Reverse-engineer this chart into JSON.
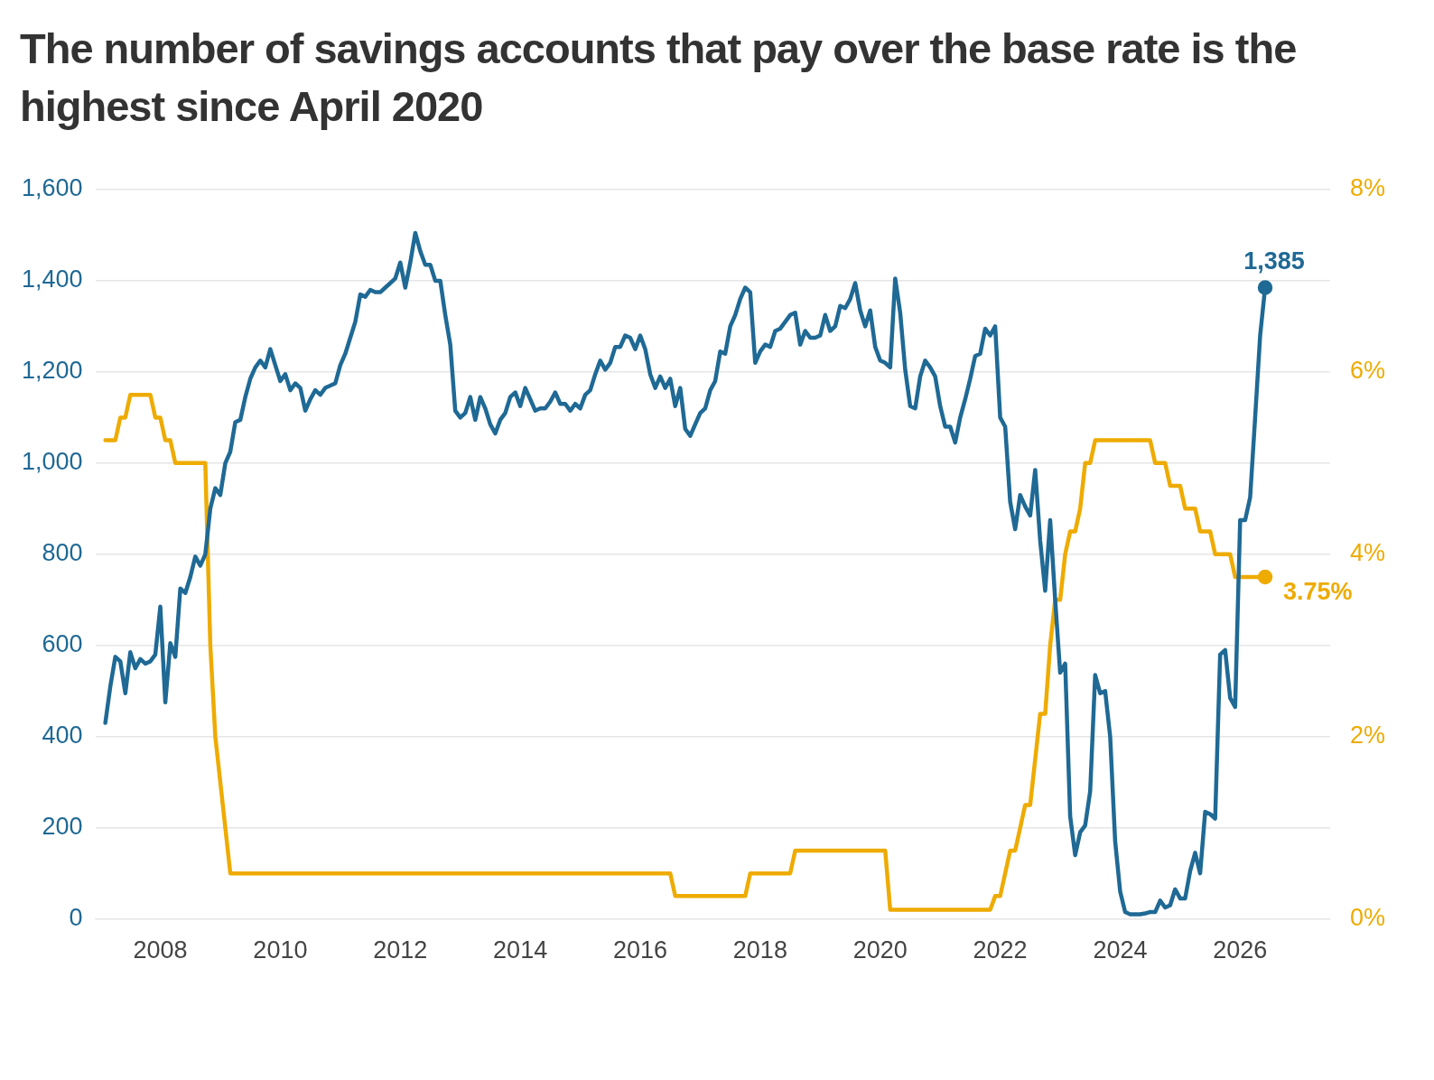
{
  "chart_data": {
    "type": "line",
    "title": "The number of savings accounts that pay over the base rate is the highest since April 2020",
    "xlim": [
      "2006-12",
      "2027-07"
    ],
    "xticks": [
      "2008",
      "2010",
      "2012",
      "2014",
      "2016",
      "2018",
      "2020",
      "2022",
      "2024",
      "2026"
    ],
    "ylim": [
      0,
      1600
    ],
    "yticks": [
      {
        "value": 0,
        "label": "0"
      },
      {
        "value": 200,
        "label": "200"
      },
      {
        "value": 400,
        "label": "400"
      },
      {
        "value": 600,
        "label": "600"
      },
      {
        "value": 800,
        "label": "800"
      },
      {
        "value": 1000,
        "label": "1,000"
      },
      {
        "value": 1200,
        "label": "1,200"
      },
      {
        "value": 1400,
        "label": "1,400"
      },
      {
        "value": 1600,
        "label": "1,600"
      }
    ],
    "y2lim": [
      0,
      8
    ],
    "y2ticks": [
      {
        "value": 0,
        "label": "0%"
      },
      {
        "value": 2,
        "label": "2%"
      },
      {
        "value": 4,
        "label": "4%"
      },
      {
        "value": 6,
        "label": "6%"
      },
      {
        "value": 8,
        "label": "8%"
      }
    ],
    "grid": "y",
    "legend": false,
    "series": [
      {
        "color": "#1f6995",
        "x": [
          "2007-02",
          "2007-03",
          "2007-04",
          "2007-05",
          "2007-06",
          "2007-07",
          "2007-08",
          "2007-09",
          "2007-10",
          "2007-11",
          "2007-12",
          "2008-01",
          "2008-02",
          "2008-03",
          "2008-04",
          "2008-05",
          "2008-06",
          "2008-07",
          "2008-08",
          "2008-09",
          "2008-10",
          "2008-11",
          "2008-12",
          "2009-01",
          "2009-02",
          "2009-03",
          "2009-04",
          "2009-05",
          "2009-06",
          "2009-07",
          "2009-08",
          "2009-09",
          "2009-10",
          "2009-11",
          "2009-12",
          "2010-01",
          "2010-02",
          "2010-03",
          "2010-04",
          "2010-05",
          "2010-06",
          "2010-07",
          "2010-08",
          "2010-09",
          "2010-10",
          "2010-11",
          "2010-12",
          "2011-01",
          "2011-02",
          "2011-03",
          "2011-04",
          "2011-05",
          "2011-06",
          "2011-07",
          "2011-08",
          "2011-09",
          "2011-10",
          "2011-11",
          "2011-12",
          "2012-01",
          "2012-02",
          "2012-03",
          "2012-04",
          "2012-05",
          "2012-06",
          "2012-07",
          "2012-08",
          "2012-09",
          "2012-10",
          "2012-11",
          "2012-12",
          "2013-01",
          "2013-02",
          "2013-03",
          "2013-04",
          "2013-05",
          "2013-06",
          "2013-07",
          "2013-08",
          "2013-09",
          "2013-10",
          "2013-11",
          "2013-12",
          "2014-01",
          "2014-02",
          "2014-03",
          "2014-04",
          "2014-05",
          "2014-06",
          "2014-07",
          "2014-08",
          "2014-09",
          "2014-10",
          "2014-11",
          "2014-12",
          "2015-01",
          "2015-02",
          "2015-03",
          "2015-04",
          "2015-05",
          "2015-06",
          "2015-07",
          "2015-08",
          "2015-09",
          "2015-10",
          "2015-11",
          "2015-12",
          "2016-01",
          "2016-02",
          "2016-03",
          "2016-04",
          "2016-05",
          "2016-06",
          "2016-07",
          "2016-08",
          "2016-09",
          "2016-10",
          "2016-11",
          "2016-12",
          "2017-01",
          "2017-02",
          "2017-03",
          "2017-04",
          "2017-05",
          "2017-06",
          "2017-07",
          "2017-08",
          "2017-09",
          "2017-10",
          "2017-11",
          "2017-12",
          "2018-01",
          "2018-02",
          "2018-03",
          "2018-04",
          "2018-05",
          "2018-06",
          "2018-07",
          "2018-08",
          "2018-09",
          "2018-10",
          "2018-11",
          "2018-12",
          "2019-01",
          "2019-02",
          "2019-03",
          "2019-04",
          "2019-05",
          "2019-06",
          "2019-07",
          "2019-08",
          "2019-09",
          "2019-10",
          "2019-11",
          "2019-12",
          "2020-01",
          "2020-02",
          "2020-03",
          "2020-04",
          "2020-05",
          "2020-06",
          "2020-07",
          "2020-08",
          "2020-09",
          "2020-10",
          "2020-11",
          "2020-12",
          "2021-01",
          "2021-02",
          "2021-03",
          "2021-04",
          "2021-05",
          "2021-06",
          "2021-07",
          "2021-08",
          "2021-09",
          "2021-10",
          "2021-11",
          "2021-12",
          "2022-01",
          "2022-02",
          "2022-03",
          "2022-04",
          "2022-05",
          "2022-06",
          "2022-07",
          "2022-08",
          "2022-09",
          "2022-10",
          "2022-11",
          "2022-12",
          "2023-01",
          "2023-02",
          "2023-03",
          "2023-04",
          "2023-05",
          "2023-06",
          "2023-07",
          "2023-08",
          "2023-09",
          "2023-10",
          "2023-11",
          "2023-12",
          "2024-01",
          "2024-02",
          "2024-03",
          "2024-04",
          "2024-05",
          "2024-06",
          "2024-07",
          "2024-08",
          "2024-09",
          "2024-10",
          "2024-11",
          "2024-12",
          "2025-01",
          "2025-02",
          "2025-03",
          "2025-04",
          "2025-05",
          "2025-06",
          "2025-07",
          "2025-08",
          "2025-09",
          "2025-10",
          "2025-11",
          "2025-12",
          "2026-01",
          "2026-02",
          "2026-03",
          "2026-04",
          "2026-05",
          "2026-06"
        ],
        "values": [
          430,
          510,
          575,
          565,
          495,
          585,
          550,
          570,
          560,
          565,
          580,
          685,
          475,
          605,
          575,
          725,
          715,
          750,
          795,
          775,
          800,
          900,
          945,
          930,
          1000,
          1025,
          1090,
          1095,
          1145,
          1185,
          1210,
          1225,
          1210,
          1250,
          1215,
          1180,
          1195,
          1160,
          1175,
          1165,
          1115,
          1140,
          1160,
          1150,
          1165,
          1170,
          1175,
          1215,
          1240,
          1275,
          1310,
          1370,
          1365,
          1380,
          1375,
          1375,
          1385,
          1395,
          1405,
          1440,
          1385,
          1440,
          1505,
          1465,
          1435,
          1435,
          1400,
          1400,
          1325,
          1260,
          1115,
          1100,
          1110,
          1145,
          1095,
          1145,
          1120,
          1085,
          1065,
          1095,
          1110,
          1145,
          1155,
          1125,
          1165,
          1140,
          1115,
          1120,
          1120,
          1135,
          1155,
          1130,
          1130,
          1115,
          1130,
          1120,
          1150,
          1160,
          1195,
          1225,
          1205,
          1220,
          1255,
          1255,
          1280,
          1275,
          1250,
          1280,
          1250,
          1195,
          1165,
          1190,
          1165,
          1185,
          1125,
          1165,
          1075,
          1060,
          1085,
          1110,
          1120,
          1160,
          1180,
          1245,
          1240,
          1300,
          1325,
          1360,
          1385,
          1375,
          1220,
          1245,
          1260,
          1255,
          1290,
          1295,
          1310,
          1325,
          1330,
          1260,
          1290,
          1275,
          1275,
          1280,
          1325,
          1290,
          1300,
          1345,
          1340,
          1360,
          1395,
          1335,
          1300,
          1335,
          1255,
          1225,
          1220,
          1210,
          1405,
          1330,
          1205,
          1125,
          1120,
          1190,
          1225,
          1210,
          1190,
          1125,
          1080,
          1080,
          1045,
          1100,
          1140,
          1185,
          1235,
          1240,
          1295,
          1280,
          1300,
          1100,
          1080,
          915,
          855,
          930,
          905,
          885,
          985,
          830,
          720,
          875,
          700,
          540,
          560,
          225,
          140,
          190,
          205,
          280,
          535,
          495,
          500,
          400,
          170,
          60,
          15,
          10,
          10,
          10,
          12,
          15,
          15,
          40,
          25,
          30,
          65,
          45,
          45,
          105,
          145,
          100,
          235,
          230,
          220,
          580,
          590,
          485,
          465,
          875,
          875,
          925,
          1100,
          1280,
          1385
        ],
        "value_labels": [
          null,
          null,
          null,
          null,
          null,
          null,
          null,
          null,
          null,
          null,
          null,
          null,
          null,
          null,
          null,
          null,
          null,
          null,
          null,
          null,
          null,
          null,
          null,
          null,
          null,
          null,
          null,
          null,
          null,
          null,
          null,
          null,
          null,
          null,
          null,
          null,
          null,
          null,
          null,
          null,
          null,
          null,
          null,
          null,
          null,
          null,
          null,
          null,
          null,
          null,
          null,
          null,
          null,
          null,
          null,
          null,
          null,
          null,
          null,
          null,
          null,
          null,
          null,
          null,
          null,
          null,
          null,
          null,
          null,
          null,
          null,
          null,
          null,
          null,
          null,
          null,
          null,
          null,
          null,
          null,
          null,
          null,
          null,
          null,
          null,
          null,
          null,
          null,
          null,
          null,
          null,
          null,
          null,
          null,
          null,
          null,
          null,
          null,
          null,
          null,
          null,
          null,
          null,
          null,
          null,
          null,
          null,
          null,
          null,
          null,
          null,
          null,
          null,
          null,
          null,
          null,
          null,
          null,
          null,
          null,
          null,
          null,
          null,
          null,
          null,
          null,
          null,
          null,
          null,
          null,
          null,
          null,
          null,
          null,
          null,
          null,
          null,
          null,
          null,
          null,
          null,
          null,
          null,
          null,
          null,
          null,
          null,
          null,
          null,
          null,
          null,
          null,
          null,
          null,
          null,
          null,
          null,
          null,
          null,
          null,
          null,
          null,
          null,
          null,
          null,
          null,
          null,
          null,
          null,
          null,
          null,
          null,
          null,
          null,
          null,
          null,
          null,
          null,
          null,
          null,
          null,
          null,
          null,
          null,
          null,
          null,
          null,
          null,
          null,
          null,
          null,
          null,
          null,
          null,
          null,
          null,
          null,
          null,
          null,
          null,
          null,
          null,
          null,
          null,
          null,
          null,
          null,
          null,
          null,
          null,
          null,
          null,
          null,
          null,
          null,
          null,
          null,
          null,
          null,
          null,
          null,
          null,
          null,
          null,
          null,
          null,
          null,
          null,
          null,
          null,
          null,
          null,
          "1,385"
        ]
      },
      {
        "color": "#eeab00",
        "axis": "y2",
        "x": [
          "2007-02",
          "2007-04",
          "2007-05",
          "2007-06",
          "2007-07",
          "2007-11",
          "2007-12",
          "2008-01",
          "2008-02",
          "2008-03",
          "2008-04",
          "2008-10",
          "2008-11",
          "2008-12",
          "2009-01",
          "2009-02",
          "2009-03",
          "2016-07",
          "2016-08",
          "2017-10",
          "2017-11",
          "2018-07",
          "2018-08",
          "2020-02",
          "2020-03",
          "2021-11",
          "2021-12",
          "2022-01",
          "2022-02",
          "2022-03",
          "2022-04",
          "2022-05",
          "2022-06",
          "2022-07",
          "2022-08",
          "2022-09",
          "2022-10",
          "2022-11",
          "2022-12",
          "2023-01",
          "2023-02",
          "2023-03",
          "2023-04",
          "2023-05",
          "2023-06",
          "2023-07",
          "2023-08",
          "2024-07",
          "2024-08",
          "2024-10",
          "2024-11",
          "2025-01",
          "2025-02",
          "2025-04",
          "2025-05",
          "2025-07",
          "2025-08",
          "2025-11",
          "2025-12",
          "2026-06"
        ],
        "values": [
          5.25,
          5.25,
          5.5,
          5.5,
          5.75,
          5.75,
          5.5,
          5.5,
          5.25,
          5.25,
          5.0,
          5.0,
          3.0,
          2.0,
          1.5,
          1.0,
          0.5,
          0.5,
          0.25,
          0.25,
          0.5,
          0.5,
          0.75,
          0.75,
          0.1,
          0.1,
          0.25,
          0.25,
          0.5,
          0.75,
          0.75,
          1.0,
          1.25,
          1.25,
          1.75,
          2.25,
          2.25,
          3.0,
          3.5,
          3.5,
          4.0,
          4.25,
          4.25,
          4.5,
          5.0,
          5.0,
          5.25,
          5.25,
          5.0,
          5.0,
          4.75,
          4.75,
          4.5,
          4.5,
          4.25,
          4.25,
          4.0,
          4.0,
          3.75,
          3.75
        ],
        "value_labels": [
          null,
          null,
          null,
          null,
          null,
          null,
          null,
          null,
          null,
          null,
          null,
          null,
          null,
          null,
          null,
          null,
          null,
          null,
          null,
          null,
          null,
          null,
          null,
          null,
          null,
          null,
          null,
          null,
          null,
          null,
          null,
          null,
          null,
          null,
          null,
          null,
          null,
          null,
          null,
          null,
          null,
          null,
          null,
          null,
          null,
          null,
          null,
          null,
          null,
          null,
          null,
          null,
          null,
          null,
          null,
          null,
          null,
          null,
          null,
          "3.75%"
        ]
      }
    ]
  }
}
